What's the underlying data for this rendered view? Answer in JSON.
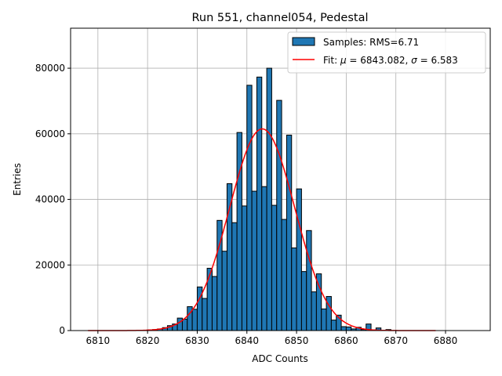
{
  "chart_data": {
    "type": "bar",
    "title": "Run 551, channel054, Pedestal",
    "xlabel": "ADC Counts",
    "ylabel": "Entries",
    "xlim": [
      6804.5,
      6889
    ],
    "ylim": [
      0,
      92200
    ],
    "xticks": [
      6810,
      6820,
      6830,
      6840,
      6850,
      6860,
      6870,
      6880
    ],
    "yticks": [
      0,
      20000,
      40000,
      60000,
      80000
    ],
    "grid": true,
    "legend_position": "top-right",
    "bar_color": "#1f77b4",
    "fit_color": "#ff0000",
    "histogram": {
      "name": "Samples: RMS=6.71",
      "bin_start": 6820,
      "bin_width": 1,
      "values": [
        200,
        300,
        500,
        900,
        1500,
        2000,
        3800,
        3500,
        7300,
        6500,
        13300,
        9800,
        19000,
        16500,
        33600,
        24200,
        44800,
        32900,
        60400,
        38000,
        74800,
        42500,
        77300,
        43900,
        80000,
        38200,
        70200,
        33900,
        59600,
        25200,
        43200,
        18000,
        30500,
        11800,
        17300,
        6600,
        10400,
        3200,
        4700,
        1200,
        1100,
        500,
        1000,
        300,
        2000,
        200,
        800,
        100,
        300
      ]
    },
    "fit": {
      "name_prefix": "Fit: ",
      "name_mu": "μ",
      "name_mid": " = 6843.082, ",
      "name_sigma": "σ",
      "name_suffix": " = 6.583",
      "mu": 6843.082,
      "sigma": 6.583,
      "amplitude": 61500,
      "x_range": [
        6808,
        6878
      ]
    }
  }
}
